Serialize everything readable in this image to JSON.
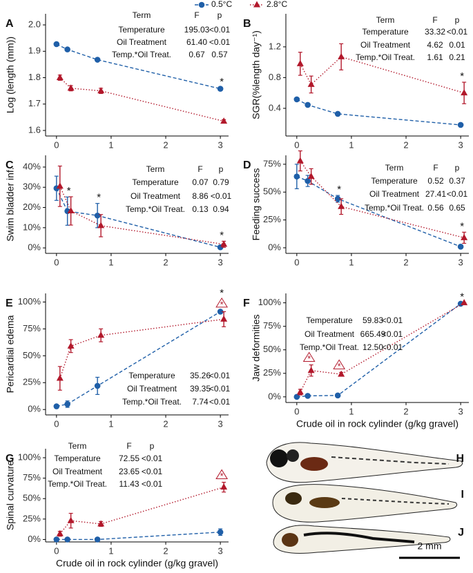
{
  "legend": [
    {
      "name": "0.5°C",
      "color": "#1f5fa8",
      "marker": "circle",
      "linestyle": "dashed"
    },
    {
      "name": "2.8°C",
      "color": "#b2182b",
      "marker": "triangle",
      "linestyle": "dotted"
    }
  ],
  "images": {
    "labels": [
      "H",
      "I",
      "J"
    ],
    "scale_bar": "2 mm"
  },
  "chart_data": [
    {
      "type": "line",
      "title": "A",
      "ylabel": "Log (length (mm))",
      "xlim": [
        -0.2,
        3.15
      ],
      "xticks": [
        0,
        1,
        2,
        3
      ],
      "ylim": [
        1.579,
        2.042
      ],
      "yticks": [
        1.6,
        1.7,
        1.8,
        1.9,
        {
          "value": 2,
          "label": "2.0"
        }
      ],
      "series": [
        {
          "x": [
            0,
            0.2,
            0.75,
            3
          ],
          "values": [
            1.927,
            1.907,
            1.868,
            1.758
          ],
          "errors": [
            0.004,
            0.004,
            0.004,
            0.004
          ]
        },
        {
          "x": [
            0,
            0.2,
            0.75,
            3
          ],
          "values": [
            1.8,
            1.76,
            1.75,
            1.635
          ],
          "errors": [
            0.01,
            0.01,
            0.01,
            0.006
          ]
        }
      ],
      "annotations": [
        {
          "x": 3,
          "label": "*"
        }
      ],
      "stats": {
        "header": [
          "Term",
          "F",
          "p"
        ],
        "rows": [
          [
            "Temperature",
            "195.03",
            "<0.01"
          ],
          [
            "Oil Treatment",
            "61.40",
            "<0.01"
          ],
          [
            "Temp.*Oil Treat.",
            "0.67",
            "0.57"
          ]
        ]
      }
    },
    {
      "type": "line",
      "title": "B",
      "ylabel": "SGR(%length day⁻¹)",
      "xlim": [
        -0.2,
        3.15
      ],
      "xticks": [
        0,
        1,
        2,
        3
      ],
      "ylim": [
        0.04,
        1.63
      ],
      "yticks": [
        0.4,
        0.8,
        1.2
      ],
      "series": [
        {
          "x": [
            0,
            0.2,
            0.75,
            3
          ],
          "values": [
            0.517,
            0.445,
            0.328,
            0.184
          ],
          "errors": [
            0.01,
            0.01,
            0.01,
            0.01
          ]
        },
        {
          "x": [
            0,
            0.2,
            0.75,
            3
          ],
          "values": [
            0.98,
            0.71,
            1.07,
            0.6
          ],
          "errors": [
            0.15,
            0.11,
            0.17,
            0.14
          ]
        }
      ],
      "annotations": [
        {
          "x": 3,
          "label": "*"
        }
      ],
      "stats": {
        "header": [
          "Term",
          "F",
          "p"
        ],
        "rows": [
          [
            "Temperature",
            "33.32",
            "<0.01"
          ],
          [
            "Oil Treatment",
            "4.62",
            "0.01"
          ],
          [
            "Temp.*Oil Treat.",
            "1.61",
            "0.21"
          ]
        ]
      }
    },
    {
      "type": "line",
      "title": "C",
      "ylabel": "Swim bladder inf.",
      "xlim": [
        -0.2,
        3.15
      ],
      "xticks": [
        0,
        1,
        2,
        3
      ],
      "ylim": [
        -2.7,
        45.8
      ],
      "yticks": [
        {
          "value": 0,
          "label": "0%"
        },
        {
          "value": 10,
          "label": "10%"
        },
        {
          "value": 20,
          "label": "20%"
        },
        {
          "value": 30,
          "label": "30%"
        },
        {
          "value": 40,
          "label": "40%"
        }
      ],
      "series": [
        {
          "x": [
            0,
            0.2,
            0.75,
            3
          ],
          "values": [
            29.5,
            18.2,
            16,
            0.3
          ],
          "errors": [
            6,
            7,
            6,
            0.5
          ]
        },
        {
          "x": [
            0,
            0.2,
            0.75,
            3
          ],
          "values": [
            30.5,
            18.3,
            11,
            1.8
          ],
          "errors": [
            10,
            7,
            5.5,
            1.5
          ]
        }
      ],
      "annotations": [
        {
          "x": 0.2,
          "label": "*"
        },
        {
          "x": 0.75,
          "label": "*"
        },
        {
          "x": 3,
          "label": "*"
        }
      ],
      "stats": {
        "header": [
          "Term",
          "F",
          "p"
        ],
        "rows": [
          [
            "Temperature",
            "0.07",
            "0.79"
          ],
          [
            "Oil Treatment",
            "8.86",
            "<0.01"
          ],
          [
            "Temp.*Oil Treat.",
            "0.13",
            "0.94"
          ]
        ]
      }
    },
    {
      "type": "line",
      "title": "D",
      "ylabel": "Feeding success",
      "xlim": [
        -0.2,
        3.15
      ],
      "xticks": [
        0,
        1,
        2,
        3
      ],
      "ylim": [
        -5,
        83
      ],
      "yticks": [
        {
          "value": 0,
          "label": "0%"
        },
        {
          "value": 25,
          "label": "25%"
        },
        {
          "value": 50,
          "label": "50%"
        },
        {
          "value": 75,
          "label": "75%"
        }
      ],
      "series": [
        {
          "x": [
            0,
            0.2,
            0.75,
            3
          ],
          "values": [
            64,
            60,
            44,
            1
          ],
          "errors": [
            11,
            5,
            3,
            0.5
          ]
        },
        {
          "x": [
            0,
            0.2,
            0.75,
            3
          ],
          "values": [
            78,
            64,
            37,
            9
          ],
          "errors": [
            9,
            7,
            7,
            5
          ]
        }
      ],
      "annotations": [
        {
          "x": 0.75,
          "label": "*"
        },
        {
          "x": 3,
          "label": "*"
        }
      ],
      "stats": {
        "header": [
          "Term",
          "F",
          "p"
        ],
        "rows": [
          [
            "Temperature",
            "0.52",
            "0.37"
          ],
          [
            "Oil Treatment",
            "27.41",
            "<0.01"
          ],
          [
            "Temp.*Oil Treat.",
            "0.56",
            "0.65"
          ]
        ]
      }
    },
    {
      "type": "line",
      "title": "E",
      "ylabel": "Pericardial edema",
      "xlim": [
        -0.2,
        3.15
      ],
      "xticks": [
        0,
        1,
        2,
        3
      ],
      "ylim": [
        -5,
        108
      ],
      "yticks": [
        {
          "value": 0,
          "label": "0%"
        },
        {
          "value": 25,
          "label": "25%"
        },
        {
          "value": 50,
          "label": "50%"
        },
        {
          "value": 75,
          "label": "75%"
        },
        {
          "value": 100,
          "label": "100%"
        }
      ],
      "series": [
        {
          "x": [
            0,
            0.2,
            0.75,
            3
          ],
          "values": [
            3,
            5,
            22,
            91
          ],
          "errors": [
            1,
            3,
            8,
            1
          ]
        },
        {
          "x": [
            0,
            0.2,
            0.75,
            3
          ],
          "values": [
            29,
            59,
            69,
            84
          ],
          "errors": [
            11,
            6,
            6,
            7
          ]
        }
      ],
      "annotations": [
        {
          "x": 3,
          "label": "*",
          "style": "triangle"
        },
        {
          "x": 3,
          "label": "*"
        }
      ],
      "stats": {
        "rows": [
          [
            "Temperature",
            "35.26",
            "<0.01"
          ],
          [
            "Oil Treatment",
            "39.35",
            "<0.01"
          ],
          [
            "Temp.*Oil Treat.",
            "7.74",
            "<0.01"
          ]
        ]
      }
    },
    {
      "type": "line",
      "title": "F",
      "ylabel": "Jaw deformities",
      "xlabel": "Crude oil in rock cylinder (g/kg gravel)",
      "xlim": [
        -0.2,
        3.15
      ],
      "xticks": [
        0,
        1,
        2,
        3
      ],
      "ylim": [
        -6,
        110
      ],
      "yticks": [
        {
          "value": 0,
          "label": "0%"
        },
        {
          "value": 25,
          "label": "25%"
        },
        {
          "value": 50,
          "label": "50%"
        },
        {
          "value": 75,
          "label": "75%"
        },
        {
          "value": 100,
          "label": "100%"
        }
      ],
      "series": [
        {
          "x": [
            0,
            0.2,
            0.75,
            3
          ],
          "values": [
            0,
            1,
            1.5,
            99
          ],
          "errors": [
            0,
            0.5,
            0.5,
            0.5
          ]
        },
        {
          "x": [
            0,
            0.2,
            0.75,
            3
          ],
          "values": [
            5,
            28,
            24,
            100
          ],
          "errors": [
            3,
            6,
            2,
            0
          ]
        }
      ],
      "annotations": [
        {
          "x": 0.2,
          "label": "*",
          "style": "triangle"
        },
        {
          "x": 0.75,
          "label": "*",
          "style": "triangle"
        },
        {
          "x": 3,
          "label": "*"
        }
      ],
      "stats": {
        "rows": [
          [
            "Temperature",
            "59.83",
            "<0.01"
          ],
          [
            "Oil Treatment",
            "665.49",
            "<0.01"
          ],
          [
            "Temp.*Oil Treat.",
            "12.50",
            "<0.01"
          ]
        ]
      }
    },
    {
      "type": "line",
      "title": "G",
      "ylabel": "Spinal curvature",
      "xlabel": "Crude oil in rock cylinder (g/kg gravel)",
      "xlim": [
        -0.2,
        3.15
      ],
      "xticks": [
        0,
        1,
        2,
        3
      ],
      "ylim": [
        -3,
        111
      ],
      "yticks": [
        {
          "value": 0,
          "label": "0%"
        },
        {
          "value": 25,
          "label": "25%"
        },
        {
          "value": 50,
          "label": "50%"
        },
        {
          "value": 75,
          "label": "75%"
        },
        {
          "value": 100,
          "label": "100%"
        }
      ],
      "series": [
        {
          "x": [
            0,
            0.2,
            0.75,
            3
          ],
          "values": [
            0,
            0,
            0,
            9
          ],
          "errors": [
            0,
            0,
            0,
            4
          ]
        },
        {
          "x": [
            0,
            0.2,
            0.75,
            3
          ],
          "values": [
            7,
            23,
            19,
            64
          ],
          "errors": [
            3,
            9,
            3,
            6
          ]
        }
      ],
      "annotations": [
        {
          "x": 3,
          "label": "*",
          "style": "triangle"
        }
      ],
      "stats": {
        "header": [
          "Term",
          "F",
          "p"
        ],
        "rows": [
          [
            "Temperature",
            "72.55",
            "<0.01"
          ],
          [
            "Oil Treatment",
            "23.65",
            "<0.01"
          ],
          [
            "Temp.*Oil Treat.",
            "11.43",
            "<0.01"
          ]
        ]
      }
    }
  ]
}
